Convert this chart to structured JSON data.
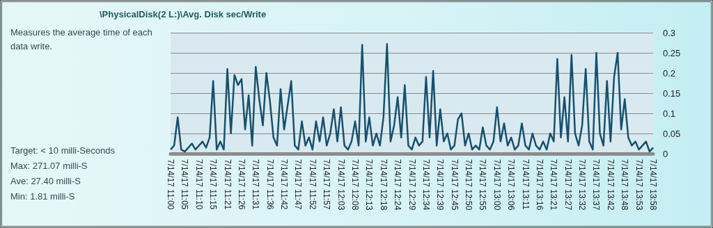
{
  "chart_data": {
    "type": "line",
    "title": "\\PhysicalDisk(2 L:)\\Avg. Disk sec/Write",
    "annotations": [
      "Measures the average time of each data write.",
      "Target: < 10 milli-Seconds",
      "Max: 271.07 milli-S",
      "Ave: 27.40 milli-S",
      "Min: 1.81 milli-S"
    ],
    "categories": [
      "7/14/17 11:00",
      null,
      null,
      null,
      "7/14/17 11:05",
      null,
      null,
      null,
      "7/14/17 11:10",
      null,
      null,
      null,
      "7/14/17 11:15",
      null,
      null,
      null,
      "7/14/17 11:21",
      null,
      null,
      null,
      "7/14/17 11:26",
      null,
      null,
      null,
      "7/14/17 11:31",
      null,
      null,
      null,
      "7/14/17 11:36",
      null,
      null,
      null,
      "7/14/17 11:42",
      null,
      null,
      null,
      "7/14/17 11:47",
      null,
      null,
      null,
      "7/14/17 11:52",
      null,
      null,
      null,
      "7/14/17 11:57",
      null,
      null,
      null,
      "7/14/17 12:03",
      null,
      null,
      null,
      "7/14/17 12:08",
      null,
      null,
      null,
      "7/14/17 12:13",
      null,
      null,
      null,
      "7/14/17 12:18",
      null,
      null,
      null,
      "7/14/17 12:24",
      null,
      null,
      null,
      "7/14/17 12:29",
      null,
      null,
      null,
      "7/14/17 12:34",
      null,
      null,
      null,
      "7/14/17 12:39",
      null,
      null,
      null,
      "7/14/17 12:45",
      null,
      null,
      null,
      "7/14/17 12:50",
      null,
      null,
      null,
      "7/14/17 12:55",
      null,
      null,
      null,
      "7/14/17 13:00",
      null,
      null,
      null,
      "7/14/17 13:06",
      null,
      null,
      null,
      "7/14/17 13:11",
      null,
      null,
      null,
      "7/14/17 13:16",
      null,
      null,
      null,
      "7/14/17 13:21",
      null,
      null,
      null,
      "7/14/17 13:27",
      null,
      null,
      null,
      "7/14/17 13:32",
      null,
      null,
      null,
      "7/14/17 13:37",
      null,
      null,
      null,
      "7/14/17 13:42",
      null,
      null,
      null,
      "7/14/17 13:48",
      null,
      null,
      null,
      "7/14/17 13:53",
      null,
      null,
      null,
      "7/14/17 13:58"
    ],
    "series": [
      {
        "color": "#17506e",
        "values": [
          0.01,
          0.02,
          0.09,
          0.01,
          0.005,
          0.015,
          0.025,
          0.01,
          0.02,
          0.03,
          0.015,
          0.04,
          0.18,
          0.01,
          0.03,
          0.01,
          0.21,
          0.05,
          0.195,
          0.17,
          0.185,
          0.06,
          0.145,
          0.02,
          0.215,
          0.135,
          0.07,
          0.2,
          0.13,
          0.04,
          0.02,
          0.16,
          0.06,
          0.12,
          0.18,
          0.02,
          0.01,
          0.08,
          0.02,
          0.04,
          0.01,
          0.08,
          0.03,
          0.09,
          0.02,
          0.05,
          0.11,
          0.03,
          0.115,
          0.02,
          0.01,
          0.03,
          0.08,
          0.02,
          0.27,
          0.03,
          0.09,
          0.02,
          0.05,
          0.02,
          0.09,
          0.272,
          0.03,
          0.07,
          0.14,
          0.04,
          0.17,
          0.02,
          0.01,
          0.04,
          0.02,
          0.03,
          0.19,
          0.04,
          0.205,
          0.02,
          0.11,
          0.03,
          0.05,
          0.01,
          0.02,
          0.085,
          0.1,
          0.02,
          0.05,
          0.01,
          0.02,
          0.01,
          0.065,
          0.02,
          0.01,
          0.03,
          0.115,
          0.03,
          0.075,
          0.02,
          0.04,
          0.01,
          0.02,
          0.075,
          0.02,
          0.01,
          0.05,
          0.02,
          0.01,
          0.03,
          0.01,
          0.05,
          0.03,
          0.235,
          0.04,
          0.14,
          0.03,
          0.245,
          0.05,
          0.02,
          0.07,
          0.21,
          0.03,
          0.01,
          0.25,
          0.05,
          0.02,
          0.18,
          0.03,
          0.19,
          0.25,
          0.06,
          0.135,
          0.04,
          0.02,
          0.03,
          0.01,
          0.02,
          0.03,
          0.005,
          0.015
        ]
      }
    ],
    "ylim": [
      0,
      0.3
    ],
    "yticks": [
      0,
      0.05,
      0.1,
      0.15,
      0.2,
      0.25,
      0.3
    ],
    "grid": "y",
    "marker": "none",
    "line_style": "solid"
  }
}
